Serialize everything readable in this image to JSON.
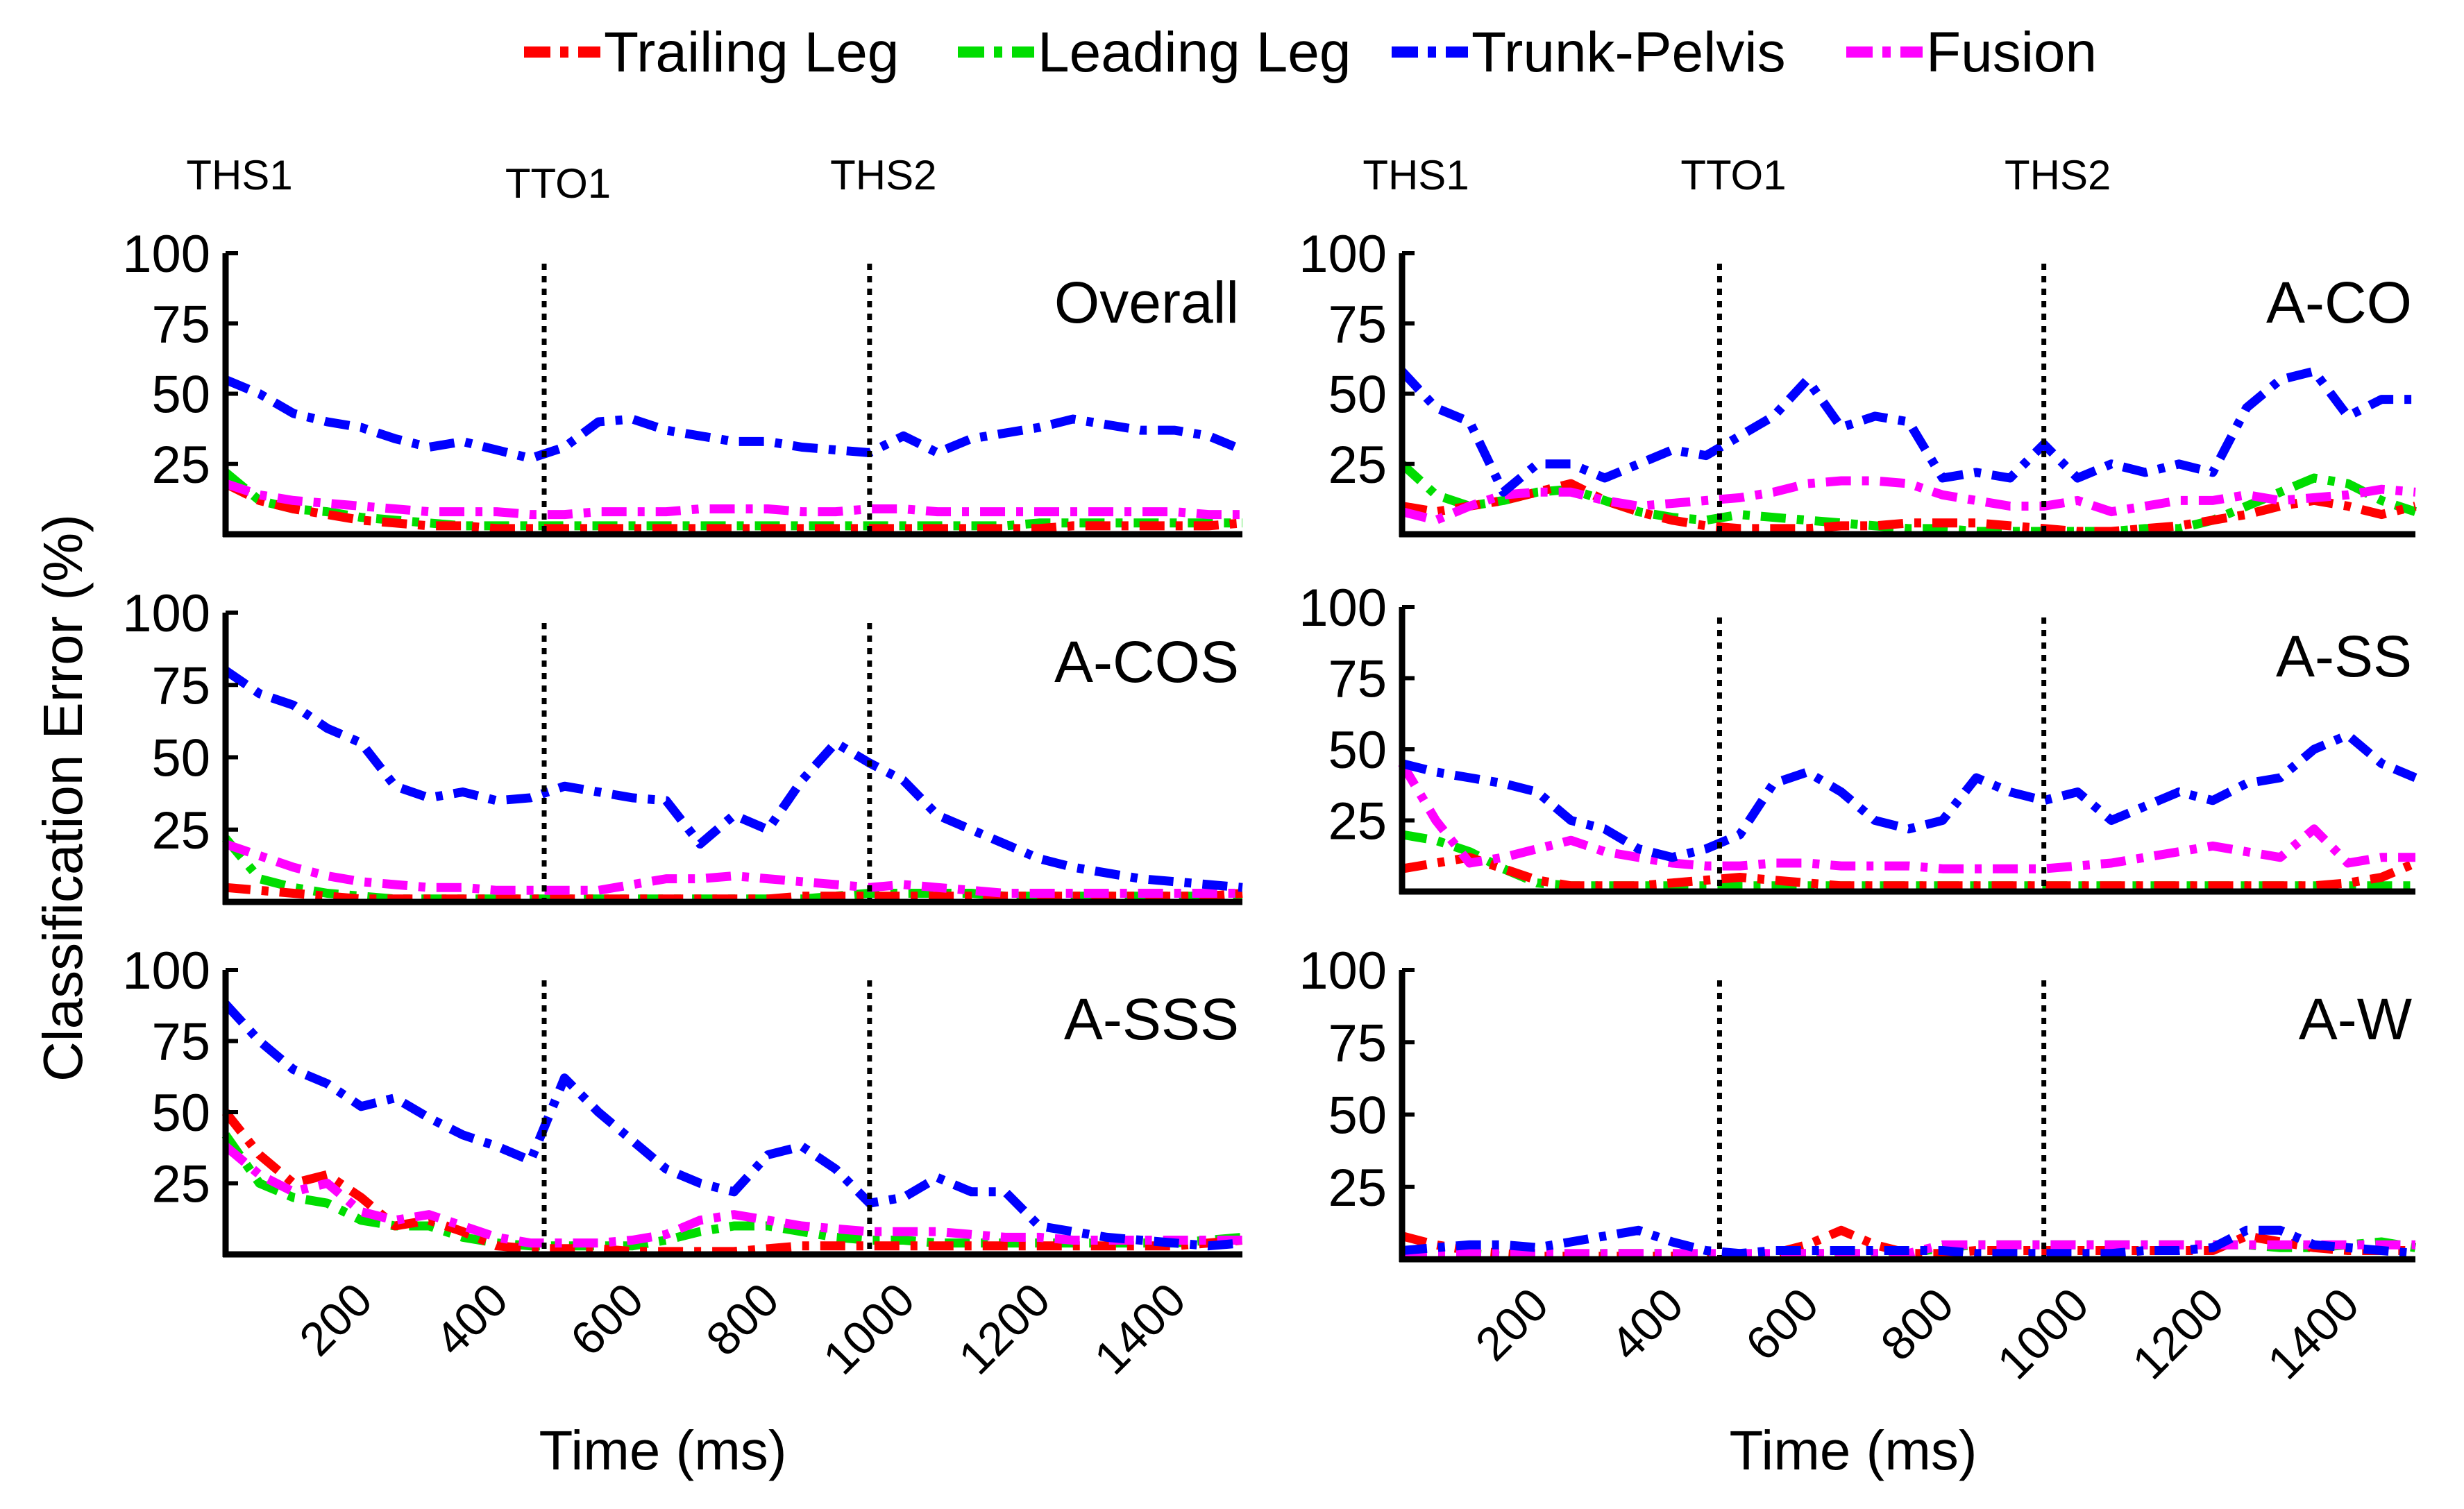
{
  "chart_data": {
    "type": "line",
    "legend": [
      {
        "name": "Trailing Leg",
        "color": "#ff0000"
      },
      {
        "name": "Leading Leg",
        "color": "#00dd00"
      },
      {
        "name": "Trunk-Pelvis",
        "color": "#0000ff"
      },
      {
        "name": "Fusion",
        "color": "#ff00ff"
      }
    ],
    "ylabel": "Classification Error (%)",
    "xlabel": "Time (ms)",
    "ylim": [
      0,
      100
    ],
    "xlim": [
      0,
      1500
    ],
    "yticks": [
      "100",
      "75",
      "50",
      "25"
    ],
    "xticks": [
      "200",
      "400",
      "600",
      "800",
      "1000",
      "1200",
      "1400"
    ],
    "x": [
      0,
      50,
      100,
      150,
      200,
      250,
      300,
      350,
      400,
      450,
      500,
      550,
      600,
      650,
      700,
      750,
      800,
      850,
      900,
      950,
      1000,
      1050,
      1100,
      1150,
      1200,
      1250,
      1300,
      1350,
      1400,
      1450,
      1500
    ],
    "panels": [
      {
        "title": "Overall",
        "events": [
          {
            "label": "THS1",
            "x": 0
          },
          {
            "label": "TTO1",
            "x": 470
          },
          {
            "label": "THS2",
            "x": 950
          }
        ],
        "series": {
          "Trailing Leg": [
            18,
            12,
            9,
            7,
            5,
            4,
            3,
            3,
            2,
            2,
            2,
            2,
            2,
            2,
            2,
            2,
            2,
            2,
            2,
            2,
            2,
            2,
            2,
            2,
            2,
            3,
            3,
            3,
            3,
            3,
            4
          ],
          "Leading Leg": [
            22,
            12,
            9,
            8,
            6,
            5,
            4,
            3,
            3,
            3,
            3,
            3,
            3,
            3,
            3,
            3,
            3,
            3,
            3,
            3,
            3,
            3,
            3,
            3,
            4,
            4,
            4,
            4,
            4,
            4,
            4
          ],
          "Trunk-Pelvis": [
            55,
            50,
            43,
            40,
            38,
            34,
            31,
            33,
            30,
            27,
            31,
            40,
            41,
            37,
            35,
            33,
            33,
            31,
            30,
            29,
            35,
            29,
            34,
            36,
            38,
            41,
            39,
            37,
            37,
            35,
            30
          ],
          "Fusion": [
            18,
            14,
            12,
            11,
            10,
            9,
            8,
            8,
            8,
            7,
            7,
            8,
            8,
            8,
            9,
            9,
            9,
            8,
            8,
            9,
            9,
            8,
            8,
            8,
            8,
            8,
            8,
            8,
            8,
            7,
            7
          ]
        }
      },
      {
        "title": "A-CO",
        "events": [
          {
            "label": "THS1",
            "x": 0
          },
          {
            "label": "TTO1",
            "x": 470
          },
          {
            "label": "THS2",
            "x": 950
          }
        ],
        "series": {
          "Trailing Leg": [
            10,
            8,
            10,
            12,
            15,
            18,
            12,
            8,
            5,
            3,
            2,
            2,
            2,
            3,
            3,
            4,
            4,
            4,
            3,
            2,
            1,
            1,
            2,
            3,
            5,
            7,
            10,
            12,
            10,
            7,
            10
          ],
          "Leading Leg": [
            25,
            14,
            10,
            12,
            15,
            16,
            12,
            8,
            6,
            5,
            7,
            6,
            5,
            4,
            3,
            2,
            2,
            1,
            1,
            1,
            1,
            1,
            2,
            2,
            5,
            10,
            15,
            20,
            18,
            12,
            8
          ],
          "Trunk-Pelvis": [
            58,
            45,
            40,
            15,
            25,
            25,
            20,
            25,
            30,
            28,
            35,
            42,
            55,
            38,
            42,
            40,
            20,
            22,
            20,
            32,
            20,
            25,
            22,
            25,
            22,
            45,
            55,
            58,
            42,
            48,
            48
          ],
          "Fusion": [
            8,
            5,
            10,
            14,
            15,
            15,
            12,
            10,
            11,
            12,
            13,
            15,
            18,
            19,
            19,
            18,
            14,
            12,
            10,
            10,
            12,
            8,
            10,
            12,
            12,
            14,
            12,
            13,
            14,
            16,
            15
          ]
        }
      },
      {
        "title": "A-COS",
        "events": [
          {
            "label": "THS1",
            "x": 0
          },
          {
            "label": "TTO1",
            "x": 470
          },
          {
            "label": "THS2",
            "x": 950
          }
        ],
        "series": {
          "Trailing Leg": [
            5,
            4,
            3,
            2,
            1,
            1,
            1,
            1,
            1,
            1,
            1,
            1,
            1,
            1,
            1,
            1,
            1,
            2,
            2,
            2,
            2,
            2,
            2,
            2,
            2,
            2,
            2,
            2,
            2,
            2,
            3
          ],
          "Leading Leg": [
            22,
            8,
            5,
            3,
            2,
            1,
            1,
            1,
            1,
            1,
            1,
            1,
            1,
            1,
            1,
            1,
            1,
            1,
            2,
            3,
            3,
            3,
            3,
            2,
            2,
            2,
            2,
            2,
            2,
            2,
            2
          ],
          "Trunk-Pelvis": [
            80,
            72,
            68,
            60,
            55,
            40,
            36,
            38,
            35,
            36,
            40,
            38,
            36,
            35,
            20,
            30,
            25,
            42,
            55,
            48,
            42,
            30,
            25,
            20,
            15,
            12,
            10,
            8,
            7,
            6,
            5
          ],
          "Fusion": [
            20,
            16,
            12,
            9,
            7,
            6,
            5,
            5,
            4,
            4,
            4,
            4,
            6,
            8,
            8,
            9,
            8,
            7,
            6,
            5,
            6,
            5,
            4,
            3,
            3,
            3,
            3,
            3,
            3,
            3,
            3
          ]
        }
      },
      {
        "title": "A-SS",
        "events": [
          {
            "label": "THS1",
            "x": 0
          },
          {
            "label": "TTO1",
            "x": 470
          },
          {
            "label": "THS2",
            "x": 950
          }
        ],
        "series": {
          "Trailing Leg": [
            8,
            10,
            12,
            8,
            4,
            2,
            2,
            2,
            3,
            4,
            5,
            4,
            3,
            2,
            2,
            2,
            2,
            2,
            2,
            2,
            2,
            2,
            2,
            2,
            2,
            2,
            2,
            2,
            3,
            5,
            10
          ],
          "Leading Leg": [
            20,
            18,
            14,
            8,
            3,
            2,
            2,
            2,
            2,
            2,
            2,
            2,
            2,
            2,
            2,
            2,
            2,
            2,
            2,
            2,
            2,
            2,
            2,
            2,
            2,
            2,
            2,
            2,
            2,
            2,
            2
          ],
          "Trunk-Pelvis": [
            45,
            42,
            40,
            38,
            35,
            25,
            22,
            15,
            12,
            15,
            20,
            38,
            42,
            35,
            25,
            22,
            25,
            40,
            35,
            32,
            35,
            25,
            30,
            35,
            32,
            38,
            40,
            50,
            55,
            45,
            40
          ],
          "Fusion": [
            45,
            25,
            10,
            12,
            15,
            18,
            14,
            12,
            10,
            9,
            9,
            10,
            10,
            9,
            9,
            9,
            8,
            8,
            8,
            8,
            9,
            10,
            12,
            14,
            16,
            14,
            12,
            22,
            10,
            12,
            12
          ]
        }
      },
      {
        "title": "A-SSS",
        "events": [
          {
            "label": "THS1",
            "x": 0
          },
          {
            "label": "TTO1",
            "x": 470
          },
          {
            "label": "THS2",
            "x": 950
          }
        ],
        "series": {
          "Trailing Leg": [
            50,
            35,
            25,
            28,
            20,
            10,
            12,
            8,
            3,
            2,
            2,
            2,
            1,
            1,
            1,
            1,
            2,
            3,
            3,
            3,
            3,
            3,
            3,
            3,
            3,
            3,
            3,
            3,
            3,
            4,
            5
          ],
          "Leading Leg": [
            42,
            25,
            20,
            18,
            12,
            10,
            10,
            6,
            4,
            3,
            3,
            3,
            3,
            5,
            8,
            10,
            10,
            8,
            6,
            5,
            5,
            4,
            4,
            4,
            4,
            4,
            4,
            4,
            4,
            5,
            6
          ],
          "Trunk-Pelvis": [
            88,
            75,
            65,
            60,
            52,
            55,
            48,
            42,
            38,
            33,
            62,
            50,
            40,
            30,
            25,
            22,
            35,
            38,
            30,
            18,
            20,
            27,
            22,
            22,
            10,
            8,
            6,
            5,
            4,
            3,
            4
          ],
          "Fusion": [
            38,
            28,
            22,
            25,
            15,
            12,
            14,
            10,
            6,
            4,
            4,
            4,
            5,
            7,
            12,
            14,
            12,
            10,
            9,
            8,
            8,
            8,
            7,
            6,
            6,
            5,
            5,
            5,
            5,
            5,
            5
          ]
        }
      },
      {
        "title": "A-W",
        "events": [
          {
            "label": "THS1",
            "x": 0
          },
          {
            "label": "TTO1",
            "x": 470
          },
          {
            "label": "THS2",
            "x": 950
          }
        ],
        "series": {
          "Trailing Leg": [
            8,
            5,
            3,
            2,
            1,
            1,
            1,
            1,
            1,
            1,
            1,
            2,
            5,
            10,
            5,
            2,
            2,
            3,
            3,
            3,
            3,
            3,
            3,
            3,
            3,
            8,
            6,
            4,
            3,
            3,
            3
          ],
          "Leading Leg": [
            2,
            2,
            2,
            1,
            1,
            1,
            2,
            2,
            2,
            1,
            1,
            2,
            2,
            2,
            2,
            2,
            4,
            5,
            5,
            5,
            5,
            5,
            5,
            5,
            5,
            5,
            4,
            4,
            5,
            6,
            4
          ],
          "Trunk-Pelvis": [
            3,
            4,
            5,
            5,
            4,
            6,
            8,
            10,
            6,
            3,
            2,
            3,
            3,
            3,
            3,
            3,
            3,
            2,
            2,
            2,
            2,
            2,
            3,
            3,
            4,
            10,
            10,
            5,
            4,
            3,
            2
          ],
          "Fusion": [
            2,
            2,
            2,
            2,
            2,
            2,
            2,
            2,
            2,
            2,
            2,
            2,
            2,
            2,
            2,
            2,
            5,
            5,
            5,
            5,
            5,
            5,
            5,
            5,
            5,
            5,
            5,
            5,
            5,
            5,
            5
          ]
        }
      }
    ]
  }
}
